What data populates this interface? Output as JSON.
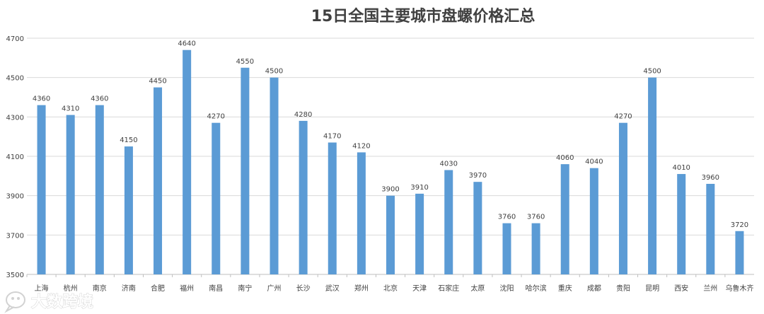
{
  "chart_data": {
    "type": "bar",
    "title": "15日全国主要城市盘螺价格汇总",
    "categories": [
      "上海",
      "杭州",
      "南京",
      "济南",
      "合肥",
      "福州",
      "南昌",
      "南宁",
      "广州",
      "长沙",
      "武汉",
      "郑州",
      "北京",
      "天津",
      "石家庄",
      "太原",
      "沈阳",
      "哈尔滨",
      "重庆",
      "成都",
      "贵阳",
      "昆明",
      "西安",
      "兰州",
      "乌鲁木齐"
    ],
    "values": [
      4360,
      4310,
      4360,
      4150,
      4450,
      4640,
      4270,
      4550,
      4500,
      4280,
      4170,
      4120,
      3900,
      3910,
      4030,
      3970,
      3760,
      3760,
      4060,
      4040,
      4270,
      4500,
      4010,
      3960,
      3720
    ],
    "ylim": [
      3500,
      4700
    ],
    "yticks": [
      3500,
      3700,
      3900,
      4100,
      4300,
      4500,
      4700
    ],
    "grid": true,
    "legend": "none",
    "bar_color": "#5b9bd5"
  },
  "watermark": {
    "text": "大数跨境",
    "icon": "speech-bubble-logo-icon"
  }
}
